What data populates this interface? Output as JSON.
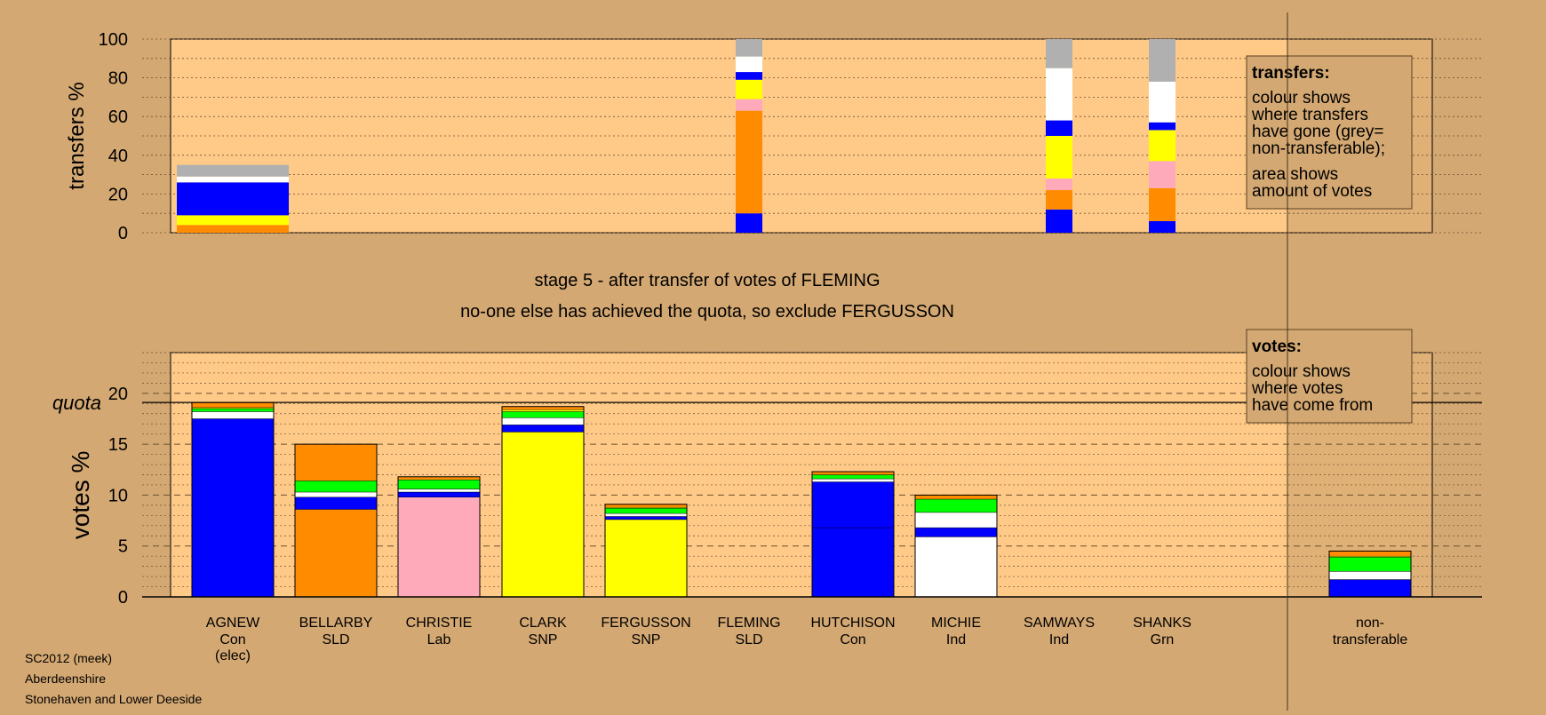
{
  "page": {
    "stage_text": "stage 5 - after transfer of votes of FLEMING",
    "status_text": "no-one else has achieved the quota, so exclude FERGUSSON",
    "footer": [
      "SC2012 (meek)",
      "Aberdeenshire",
      "Stonehaven and Lower Deeside"
    ]
  },
  "colors": {
    "background": "#d4a872",
    "plot_bg": "#ffca88",
    "Con": "#0000ff",
    "SLD": "#ff8c00",
    "Lab": "#ffaabb",
    "SNP": "#ffff00",
    "Ind": "#ffffff",
    "Grn": "#00ff00",
    "nontransferable": "#b0b0b0"
  },
  "legends": {
    "transfers": {
      "title": "transfers:",
      "lines": [
        "colour shows",
        "where transfers",
        "have gone (grey=",
        "non-transferable);",
        "area shows",
        "amount of votes"
      ]
    },
    "votes": {
      "title": "votes:",
      "lines": [
        "colour shows",
        "where votes",
        "have come from"
      ]
    }
  },
  "chart_data": [
    {
      "type": "bar",
      "subtype": "stacked",
      "ylabel": "transfers %",
      "ylim": [
        0,
        100
      ],
      "yticks": [
        0,
        20,
        40,
        60,
        80,
        100
      ],
      "grid": true,
      "categories": [
        "AGNEW",
        "BELLARBY",
        "CHRISTIE",
        "CLARK",
        "FERGUSSON",
        "FLEMING",
        "HUTCHISON",
        "MICHIE",
        "SAMWAYS",
        "SHANKS",
        "non-transferable"
      ],
      "bars": [
        {
          "category": "AGNEW",
          "width": "wide",
          "segments": [
            {
              "party": "SLD",
              "value": 4
            },
            {
              "party": "SNP",
              "value": 5
            },
            {
              "party": "Con",
              "value": 17
            },
            {
              "party": "Ind",
              "value": 3
            },
            {
              "party": "nontransferable",
              "value": 6
            }
          ]
        },
        {
          "category": "FLEMING",
          "width": "narrow",
          "segments": [
            {
              "party": "Con",
              "value": 10
            },
            {
              "party": "SLD",
              "value": 53
            },
            {
              "party": "Lab",
              "value": 6
            },
            {
              "party": "SNP",
              "value": 10
            },
            {
              "party": "Con",
              "value": 4
            },
            {
              "party": "Ind",
              "value": 8
            },
            {
              "party": "nontransferable",
              "value": 9
            }
          ]
        },
        {
          "category": "SAMWAYS",
          "width": "narrow",
          "segments": [
            {
              "party": "Con",
              "value": 12
            },
            {
              "party": "SLD",
              "value": 10
            },
            {
              "party": "Lab",
              "value": 6
            },
            {
              "party": "SNP",
              "value": 22
            },
            {
              "party": "Con",
              "value": 8
            },
            {
              "party": "Ind",
              "value": 27
            },
            {
              "party": "nontransferable",
              "value": 15
            }
          ]
        },
        {
          "category": "SHANKS",
          "width": "narrow",
          "segments": [
            {
              "party": "Con",
              "value": 6
            },
            {
              "party": "SLD",
              "value": 17
            },
            {
              "party": "Lab",
              "value": 14
            },
            {
              "party": "SNP",
              "value": 16
            },
            {
              "party": "Con",
              "value": 4
            },
            {
              "party": "Ind",
              "value": 21
            },
            {
              "party": "nontransferable",
              "value": 22
            }
          ]
        }
      ]
    },
    {
      "type": "bar",
      "subtype": "stacked",
      "ylabel": "votes %",
      "ylim": [
        0,
        24
      ],
      "yticks": [
        0,
        5,
        10,
        15,
        20
      ],
      "quota": 19.1,
      "quota_label": "quota",
      "grid": true,
      "categories": [
        "AGNEW",
        "BELLARBY",
        "CHRISTIE",
        "CLARK",
        "FERGUSSON",
        "FLEMING",
        "HUTCHISON",
        "MICHIE",
        "SAMWAYS",
        "SHANKS",
        "non-transferable"
      ],
      "candidates": [
        {
          "name": "AGNEW",
          "party": "Con",
          "note": "(elec)",
          "segments": [
            {
              "party": "Con",
              "value": 17.5
            },
            {
              "party": "Ind",
              "value": 0.7
            },
            {
              "party": "Grn",
              "value": 0.3
            },
            {
              "party": "SNP",
              "value": 0.1
            },
            {
              "party": "SLD",
              "value": 0.5
            }
          ]
        },
        {
          "name": "BELLARBY",
          "party": "SLD",
          "segments": [
            {
              "party": "SLD",
              "value": 8.6
            },
            {
              "party": "Con",
              "value": 1.2
            },
            {
              "party": "Ind",
              "value": 0.5
            },
            {
              "party": "Grn",
              "value": 1.1
            },
            {
              "party": "SLD",
              "value": 3.6
            }
          ]
        },
        {
          "name": "CHRISTIE",
          "party": "Lab",
          "segments": [
            {
              "party": "Lab",
              "value": 9.8
            },
            {
              "party": "Con",
              "value": 0.5
            },
            {
              "party": "Ind",
              "value": 0.3
            },
            {
              "party": "Grn",
              "value": 0.9
            },
            {
              "party": "SLD",
              "value": 0.3
            }
          ]
        },
        {
          "name": "CLARK",
          "party": "SNP",
          "segments": [
            {
              "party": "SNP",
              "value": 16.2
            },
            {
              "party": "Con",
              "value": 0.7
            },
            {
              "party": "Ind",
              "value": 0.7
            },
            {
              "party": "Grn",
              "value": 0.6
            },
            {
              "party": "SNP",
              "value": 0.2
            },
            {
              "party": "SLD",
              "value": 0.3
            }
          ]
        },
        {
          "name": "FERGUSSON",
          "party": "SNP",
          "segments": [
            {
              "party": "SNP",
              "value": 7.6
            },
            {
              "party": "Con",
              "value": 0.3
            },
            {
              "party": "Ind",
              "value": 0.3
            },
            {
              "party": "Grn",
              "value": 0.5
            },
            {
              "party": "SNP",
              "value": 0.1
            },
            {
              "party": "SLD",
              "value": 0.3
            }
          ]
        },
        {
          "name": "FLEMING",
          "party": "SLD",
          "segments": []
        },
        {
          "name": "HUTCHISON",
          "party": "Con",
          "segments": [
            {
              "party": "Con",
              "value": 6.8
            },
            {
              "party": "Con",
              "value": 4.5
            },
            {
              "party": "Ind",
              "value": 0.3
            },
            {
              "party": "Grn",
              "value": 0.4
            },
            {
              "party": "SLD",
              "value": 0.3
            }
          ]
        },
        {
          "name": "MICHIE",
          "party": "Ind",
          "segments": [
            {
              "party": "Ind",
              "value": 5.9
            },
            {
              "party": "Con",
              "value": 0.9
            },
            {
              "party": "Ind",
              "value": 1.5
            },
            {
              "party": "Grn",
              "value": 1.3
            },
            {
              "party": "SLD",
              "value": 0.4
            }
          ]
        },
        {
          "name": "SAMWAYS",
          "party": "Ind",
          "segments": []
        },
        {
          "name": "SHANKS",
          "party": "Grn",
          "segments": []
        },
        {
          "name": "non-",
          "party": "transferable",
          "segments": [
            {
              "party": "Con",
              "value": 1.7
            },
            {
              "party": "Ind",
              "value": 0.8
            },
            {
              "party": "Grn",
              "value": 1.4
            },
            {
              "party": "SNP",
              "value": 0.1
            },
            {
              "party": "SLD",
              "value": 0.5
            }
          ]
        }
      ]
    }
  ]
}
